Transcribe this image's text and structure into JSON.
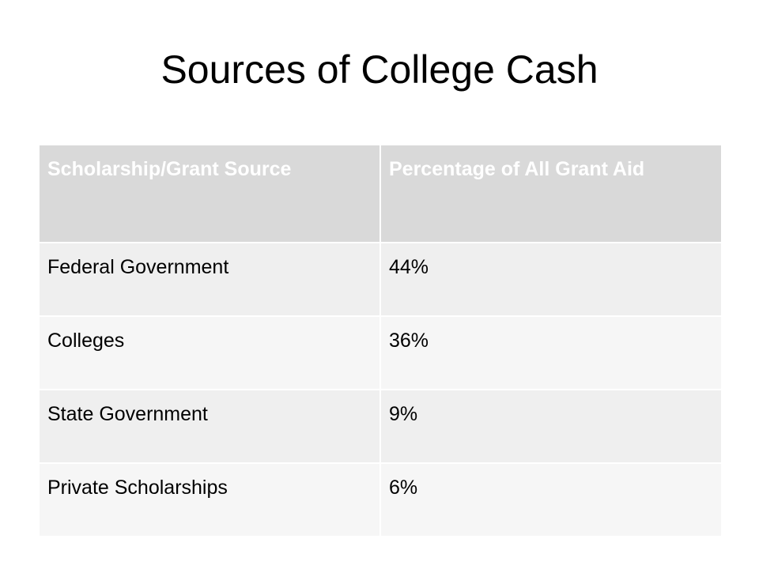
{
  "slide": {
    "title": "Sources of College Cash"
  },
  "table": {
    "headers": [
      "Scholarship/Grant Source",
      "Percentage of All Grant Aid"
    ],
    "rows": [
      [
        "Federal Government",
        "44%"
      ],
      [
        "Colleges",
        "36%"
      ],
      [
        "State Government",
        "9%"
      ],
      [
        "Private Scholarships",
        "6%"
      ]
    ]
  },
  "colors": {
    "header_fill": "#d9d9d9",
    "header_text": "#ffffff",
    "row_fill_a": "#efefef",
    "row_fill_b": "#f6f6f6"
  }
}
